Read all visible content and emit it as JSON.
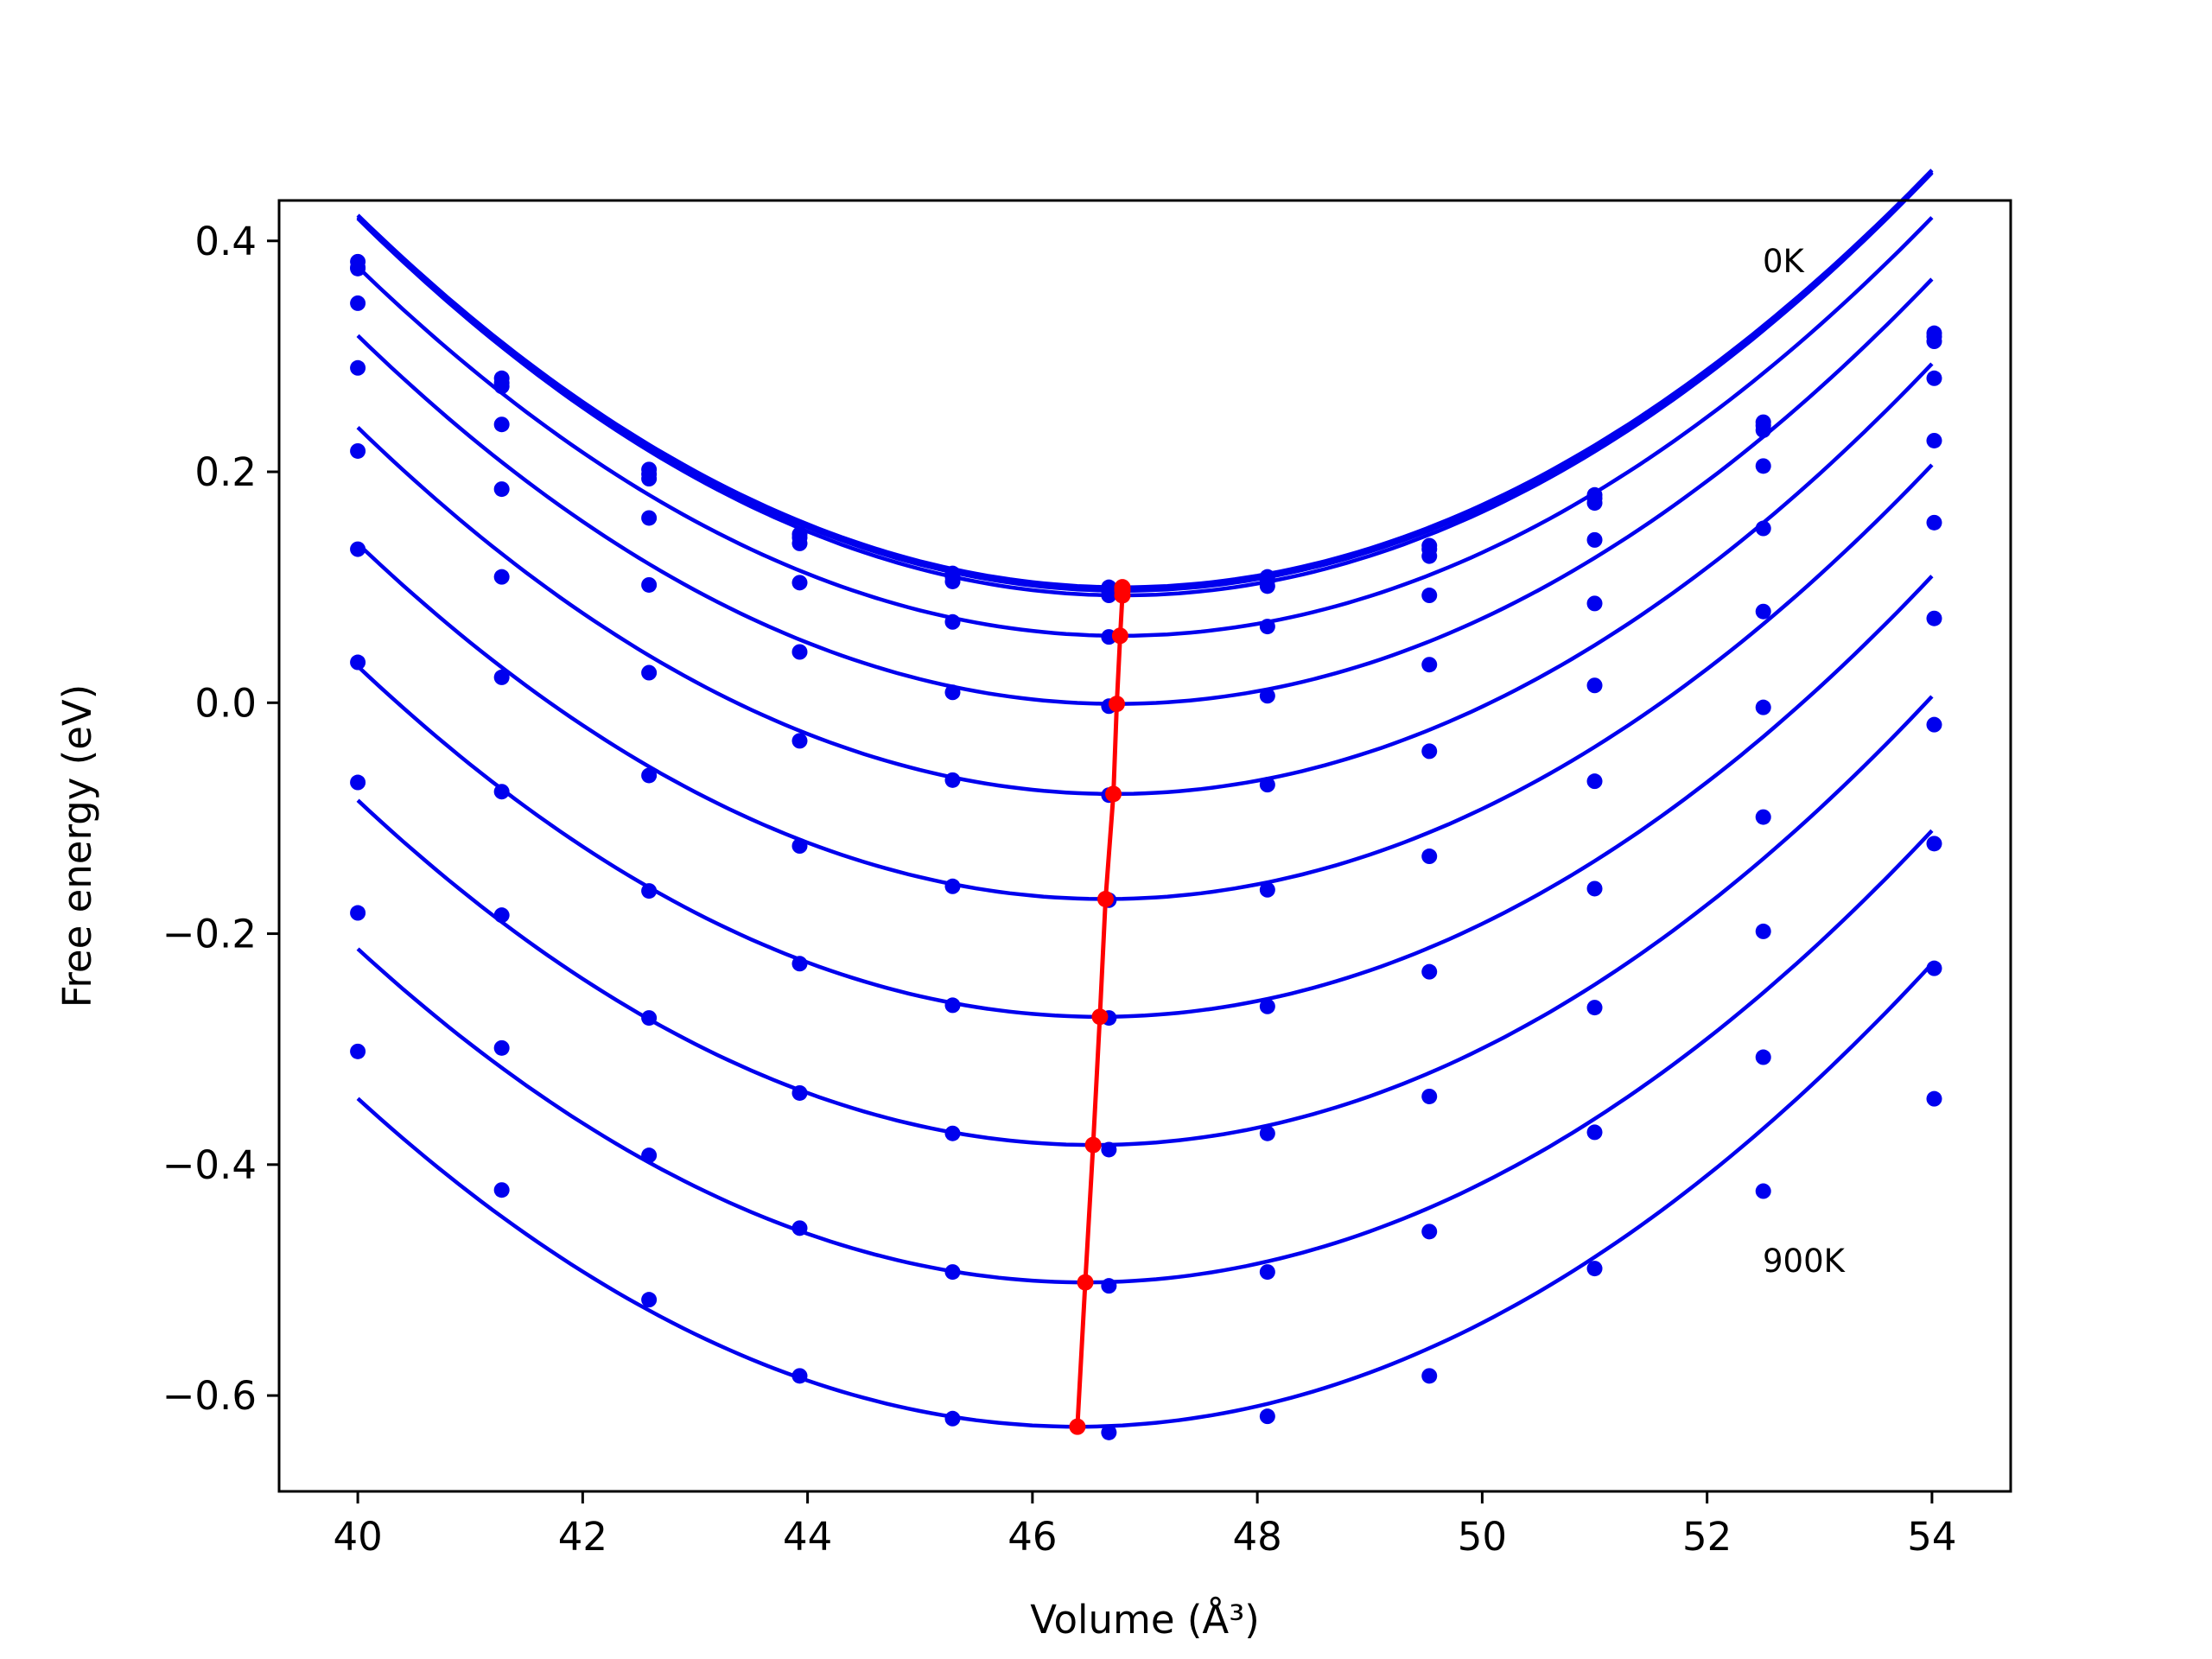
{
  "chart_data": {
    "type": "scatter",
    "title": "",
    "xlabel": "Volume (Å³)",
    "ylabel": "Free energy (eV)",
    "xlim": [
      39.3,
      54.7
    ],
    "ylim": [
      -0.683,
      0.435
    ],
    "xticks": [
      40,
      42,
      44,
      46,
      48,
      50,
      52,
      54
    ],
    "xtick_labels": [
      "40",
      "42",
      "44",
      "46",
      "48",
      "50",
      "52",
      "54"
    ],
    "yticks": [
      -0.6,
      -0.4,
      -0.2,
      0.0,
      0.2,
      0.4
    ],
    "ytick_labels": [
      "−0.6",
      "−0.4",
      "−0.2",
      "0.0",
      "0.2",
      "0.4"
    ],
    "grid": false,
    "legend": "none",
    "colors": {
      "data": "#0000ee",
      "minimum": "#ff0000"
    },
    "annotations": [
      {
        "text": "0K",
        "x": 52.5,
        "y": 0.375
      },
      {
        "text": "900K",
        "x": 52.5,
        "y": -0.49
      }
    ],
    "volumes": [
      40.0,
      41.28,
      42.59,
      43.93,
      45.29,
      46.68,
      48.09,
      49.53,
      51.0,
      52.5,
      54.02
    ],
    "series": [
      {
        "points": [
          0.382,
          0.281,
          0.202,
          0.146,
          0.112,
          0.1,
          0.109,
          0.136,
          0.18,
          0.243,
          0.32
        ],
        "fit": {
          "a": 0.00697,
          "v0": 46.8,
          "e0": 0.1
        }
      },
      {
        "points": [
          0.377,
          0.277,
          0.198,
          0.143,
          0.109,
          0.097,
          0.106,
          0.133,
          0.177,
          0.24,
          0.317
        ],
        "fit": {
          "a": 0.007,
          "v0": 46.8,
          "e0": 0.097
        }
      },
      {
        "points": [
          0.376,
          0.274,
          0.194,
          0.138,
          0.105,
          0.093,
          0.101,
          0.127,
          0.173,
          0.236,
          0.313
        ],
        "fit": {
          "a": 0.00706,
          "v0": 46.8,
          "e0": 0.093
        }
      },
      {
        "points": [
          0.346,
          0.241,
          0.16,
          0.104,
          0.07,
          0.057,
          0.066,
          0.093,
          0.141,
          0.205,
          0.281
        ],
        "fit": {
          "a": 0.00695,
          "v0": 46.78,
          "e0": 0.058
        }
      },
      {
        "points": [
          0.29,
          0.185,
          0.102,
          0.044,
          0.009,
          -0.003,
          0.006,
          0.033,
          0.086,
          0.151,
          0.227
        ],
        "fit": {
          "a": 0.007,
          "v0": 46.75,
          "e0": -0.001
        }
      },
      {
        "points": [
          0.218,
          0.109,
          0.026,
          -0.033,
          -0.067,
          -0.08,
          -0.071,
          -0.042,
          0.015,
          0.079,
          0.156
        ],
        "fit": {
          "a": 0.00703,
          "v0": 46.72,
          "e0": -0.079
        }
      },
      {
        "points": [
          0.133,
          0.022,
          -0.063,
          -0.124,
          -0.159,
          -0.171,
          -0.162,
          -0.133,
          -0.068,
          -0.004,
          0.073
        ],
        "fit": {
          "a": 0.00696,
          "v0": 46.65,
          "e0": -0.17
        }
      },
      {
        "points": [
          0.035,
          -0.077,
          -0.163,
          -0.226,
          -0.262,
          -0.273,
          -0.263,
          -0.233,
          -0.161,
          -0.099,
          -0.019
        ],
        "fit": {
          "a": 0.00697,
          "v0": 46.6,
          "e0": -0.272
        }
      },
      {
        "points": [
          -0.069,
          -0.184,
          -0.273,
          -0.338,
          -0.373,
          -0.387,
          -0.373,
          -0.341,
          -0.264,
          -0.198,
          -0.122
        ],
        "fit": {
          "a": 0.00698,
          "v0": 46.54,
          "e0": -0.383
        }
      },
      {
        "points": [
          -0.182,
          -0.299,
          -0.392,
          -0.455,
          -0.493,
          -0.505,
          -0.493,
          -0.458,
          -0.372,
          -0.307,
          -0.23
        ],
        "fit": {
          "a": 0.0069,
          "v0": 46.47,
          "e0": -0.502
        }
      },
      {
        "points": [
          -0.302,
          -0.422,
          -0.517,
          -0.583,
          -0.62,
          -0.632,
          -0.618,
          -0.583,
          -0.49,
          -0.423,
          -0.343
        ],
        "fit": {
          "a": 0.00694,
          "v0": 46.4,
          "e0": -0.627
        }
      }
    ],
    "minima": {
      "x": [
        46.8,
        46.8,
        46.8,
        46.78,
        46.75,
        46.72,
        46.65,
        46.6,
        46.54,
        46.47,
        46.4
      ],
      "y": [
        0.1,
        0.097,
        0.093,
        0.058,
        -0.001,
        -0.079,
        -0.17,
        -0.272,
        -0.383,
        -0.502,
        -0.627
      ]
    }
  }
}
